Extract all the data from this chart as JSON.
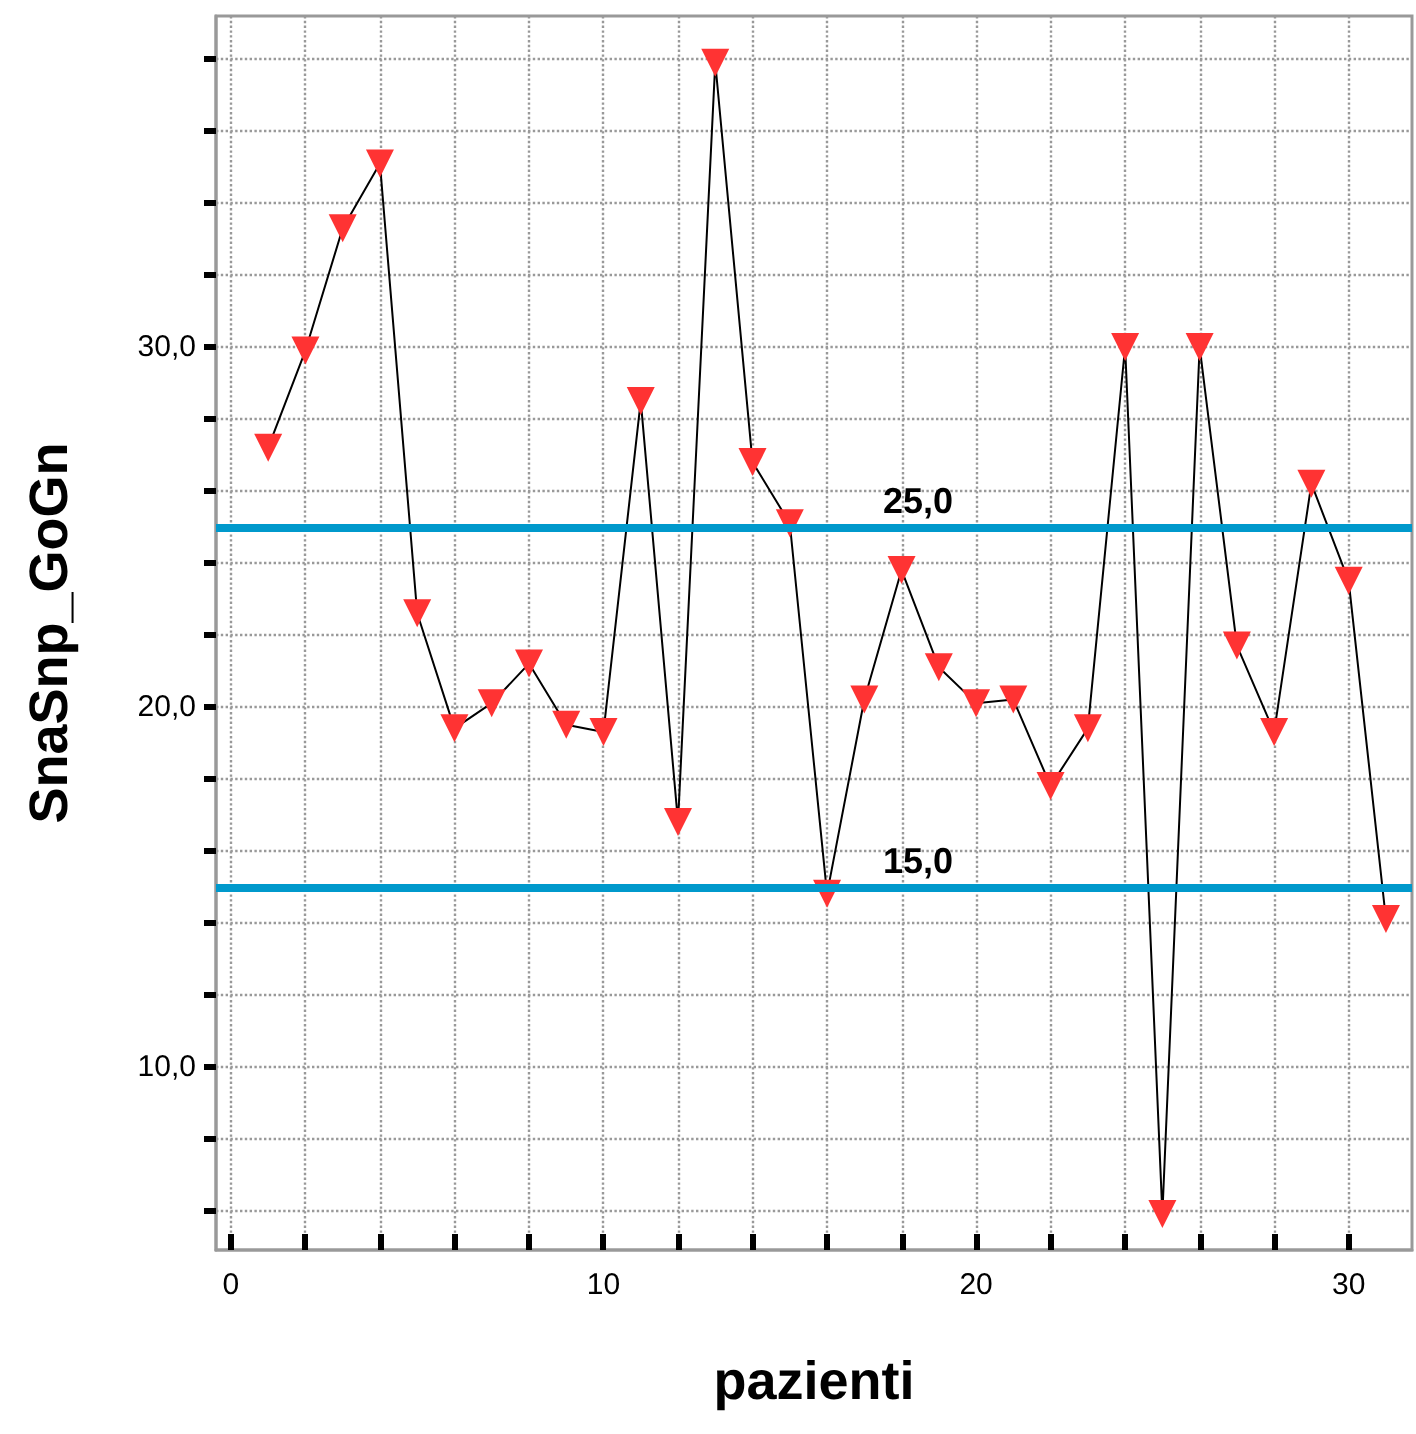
{
  "chart_data": {
    "type": "line",
    "xlabel": "pazienti",
    "ylabel": "SnaSnp_GoGn",
    "x": [
      1,
      2,
      3,
      4,
      5,
      6,
      7,
      8,
      9,
      10,
      11,
      12,
      13,
      14,
      15,
      16,
      17,
      18,
      19,
      20,
      21,
      22,
      23,
      24,
      25,
      26,
      27,
      28,
      29,
      30,
      31
    ],
    "series": [
      {
        "color": "#ff3333",
        "values": [
          27.2,
          29.9,
          33.3,
          35.1,
          22.6,
          19.4,
          20.1,
          21.2,
          19.5,
          19.3,
          28.5,
          16.8,
          37.9,
          26.8,
          25.1,
          14.8,
          20.2,
          23.8,
          21.1,
          20.1,
          20.2,
          17.8,
          19.4,
          30.0,
          5.9,
          30.0,
          21.7,
          19.3,
          26.2,
          23.5,
          14.1
        ]
      }
    ],
    "xlim": [
      -0.4,
      31.7
    ],
    "ylim": [
      4.9,
      39.2
    ],
    "xticks": [
      0,
      {
        "value": 2,
        "label": null
      },
      {
        "value": 4,
        "label": null
      },
      {
        "value": 6,
        "label": null
      },
      {
        "value": 8,
        "label": null
      },
      10,
      {
        "value": 12,
        "label": null
      },
      {
        "value": 14,
        "label": null
      },
      {
        "value": 16,
        "label": null
      },
      {
        "value": 18,
        "label": null
      },
      20,
      {
        "value": 22,
        "label": null
      },
      {
        "value": 24,
        "label": null
      },
      {
        "value": 26,
        "label": null
      },
      {
        "value": 28,
        "label": null
      },
      30
    ],
    "yticks": [
      {
        "value": 6,
        "label": null
      },
      {
        "value": 8,
        "label": null
      },
      {
        "value": 10,
        "label": "10,0"
      },
      {
        "value": 12,
        "label": null
      },
      {
        "value": 14,
        "label": null
      },
      {
        "value": 16,
        "label": null
      },
      {
        "value": 18,
        "label": null
      },
      {
        "value": 20,
        "label": "20,0"
      },
      {
        "value": 22,
        "label": null
      },
      {
        "value": 24,
        "label": null
      },
      {
        "value": 26,
        "label": null
      },
      {
        "value": 28,
        "label": null
      },
      {
        "value": 30,
        "label": "30,0"
      },
      {
        "value": 32,
        "label": null
      },
      {
        "value": 34,
        "label": null
      },
      {
        "value": 36,
        "label": null
      },
      {
        "value": 38,
        "label": null
      }
    ],
    "ref_lines": [
      {
        "axis": "y",
        "value": 25,
        "label": "25,0",
        "color": "#0099cc"
      },
      {
        "axis": "y",
        "value": 15,
        "label": "15,0",
        "color": "#0099cc"
      }
    ],
    "grid": true,
    "marker": "triangle",
    "line_style": "solid"
  }
}
